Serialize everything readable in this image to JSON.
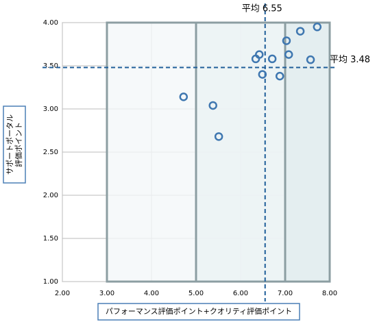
{
  "chart_data": {
    "type": "scatter",
    "x_label": "パフォーマンス評価ポイント+クオリティ評価ポイント",
    "y_label_lines": [
      "サポートポータル",
      "評価ポイント"
    ],
    "x": [
      4.72,
      5.38,
      5.51,
      6.34,
      6.42,
      6.49,
      6.71,
      6.88,
      7.03,
      7.08,
      7.34,
      7.57,
      7.72
    ],
    "values": [
      3.14,
      3.04,
      2.68,
      3.58,
      3.63,
      3.4,
      3.58,
      3.38,
      3.79,
      3.63,
      3.9,
      3.57,
      3.95
    ],
    "color": "#3f77b0",
    "xlim": [
      2,
      8
    ],
    "ylim": [
      1,
      4
    ],
    "xticks": [
      {
        "value": 2,
        "label": "2.00"
      },
      {
        "value": 3,
        "label": "3.00"
      },
      {
        "value": 4,
        "label": "4.00"
      },
      {
        "value": 5,
        "label": "5.00"
      },
      {
        "value": 6,
        "label": "6.00"
      },
      {
        "value": 7,
        "label": "7.00"
      },
      {
        "value": 8,
        "label": "8.00"
      }
    ],
    "yticks": [
      {
        "value": 1,
        "label": "1.00"
      },
      {
        "value": 1.5,
        "label": "1.50"
      },
      {
        "value": 2,
        "label": "2.00"
      },
      {
        "value": 2.5,
        "label": "2.50"
      },
      {
        "value": 3,
        "label": "3.00"
      },
      {
        "value": 3.5,
        "label": "3.50"
      },
      {
        "value": 4,
        "label": "4.00"
      }
    ],
    "grid": true,
    "regions": [
      [
        3,
        8
      ],
      [
        5,
        8
      ],
      [
        7,
        8
      ]
    ],
    "region_colors": [
      "#f4f8f9",
      "#ebf2f4",
      "#e1ecef"
    ],
    "avg_x": {
      "value": 6.55,
      "label": "平均 6.55"
    },
    "avg_y": {
      "value": 3.48,
      "label": "平均 3.48"
    },
    "avg_color": "#1f5e99"
  }
}
